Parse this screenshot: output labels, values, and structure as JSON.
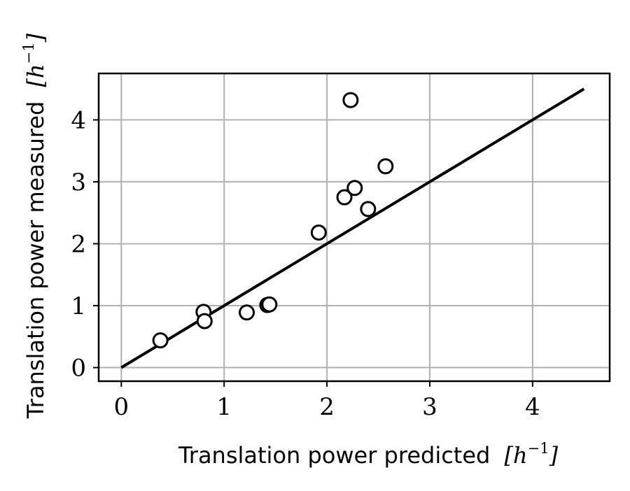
{
  "chart_data": {
    "type": "scatter",
    "xlabel": {
      "text": "Translation power predicted",
      "unit_open": "[",
      "unit_symbol": "h",
      "unit_exponent": "−1",
      "unit_close": "]"
    },
    "ylabel": {
      "text": "Translation power measured",
      "unit_open": "[",
      "unit_symbol": "h",
      "unit_exponent": "−1",
      "unit_close": "]"
    },
    "xlim": [
      -0.22,
      4.75
    ],
    "ylim": [
      -0.22,
      4.75
    ],
    "xticks": [
      0,
      1,
      2,
      3,
      4
    ],
    "yticks": [
      0,
      1,
      2,
      3,
      4
    ],
    "grid": true,
    "legend": false,
    "reference_line": {
      "x": [
        0,
        4.5
      ],
      "y": [
        0,
        4.5
      ]
    },
    "points": [
      {
        "x": 0.38,
        "y": 0.44
      },
      {
        "x": 0.8,
        "y": 0.9
      },
      {
        "x": 0.81,
        "y": 0.75
      },
      {
        "x": 1.22,
        "y": 0.89
      },
      {
        "x": 1.42,
        "y": 1.01
      },
      {
        "x": 1.44,
        "y": 1.02
      },
      {
        "x": 1.92,
        "y": 2.18
      },
      {
        "x": 2.17,
        "y": 2.75
      },
      {
        "x": 2.27,
        "y": 2.9
      },
      {
        "x": 2.23,
        "y": 4.32
      },
      {
        "x": 2.4,
        "y": 2.56
      },
      {
        "x": 2.57,
        "y": 3.25
      }
    ]
  }
}
